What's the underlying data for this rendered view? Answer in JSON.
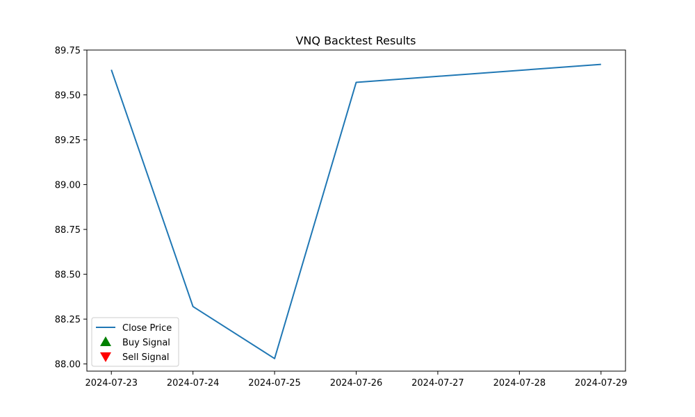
{
  "chart_data": {
    "type": "line",
    "title": "VNQ Backtest Results",
    "xlabel": "",
    "ylabel": "",
    "x": [
      "2024-07-23",
      "2024-07-24",
      "2024-07-25",
      "2024-07-26",
      "2024-07-29"
    ],
    "x_ticks": [
      "2024-07-23",
      "2024-07-24",
      "2024-07-25",
      "2024-07-26",
      "2024-07-27",
      "2024-07-28",
      "2024-07-29"
    ],
    "xlim": [
      "2024-07-23",
      "2024-07-29"
    ],
    "ylim": [
      87.96,
      89.75
    ],
    "y_ticks": [
      88.0,
      88.25,
      88.5,
      88.75,
      89.0,
      89.25,
      89.5,
      89.75
    ],
    "y_tick_labels": [
      "88.00",
      "88.25",
      "88.50",
      "88.75",
      "89.00",
      "89.25",
      "89.50",
      "89.75"
    ],
    "grid": false,
    "legend_position": "lower-left",
    "series": [
      {
        "name": "Close Price",
        "color": "#1f77b4",
        "values": [
          89.64,
          88.32,
          88.03,
          89.57,
          89.67
        ]
      }
    ],
    "legend": [
      {
        "label": "Close Price",
        "marker": "line",
        "color": "#1f77b4"
      },
      {
        "label": "Buy Signal",
        "marker": "triangle-up",
        "color": "#008000"
      },
      {
        "label": "Sell Signal",
        "marker": "triangle-down",
        "color": "#ff0000"
      }
    ]
  }
}
